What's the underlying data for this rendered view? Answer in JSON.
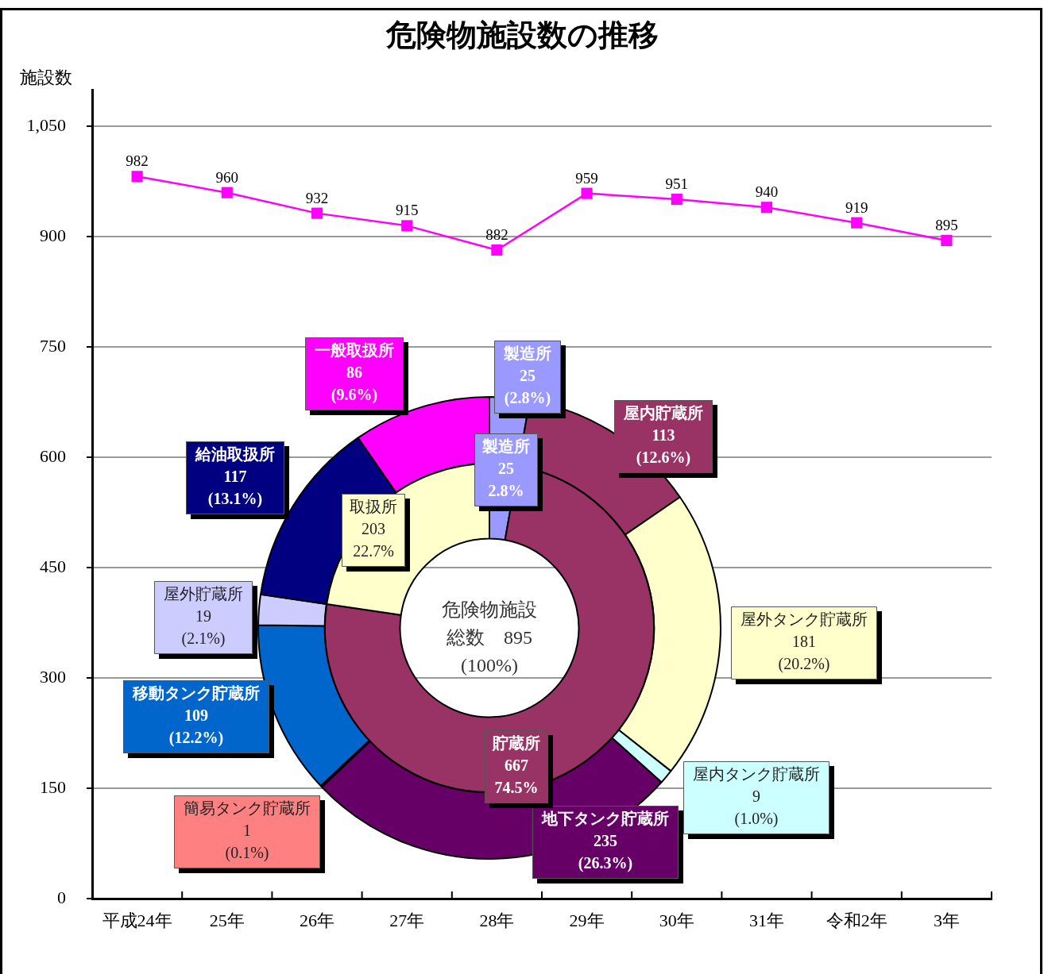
{
  "chart_data": [
    {
      "type": "line",
      "title": "危険物施設数の推移",
      "ylabel": "施設数",
      "categories": [
        "平成24年",
        "25年",
        "26年",
        "27年",
        "28年",
        "29年",
        "30年",
        "31年",
        "令和2年",
        "3年"
      ],
      "values": [
        982,
        960,
        932,
        915,
        882,
        959,
        951,
        940,
        919,
        895
      ],
      "color": "#ff00ff",
      "marker": "square",
      "line_style": "solid",
      "data_labels": true,
      "ylim": [
        0,
        1100
      ],
      "yticks": [
        0,
        150,
        300,
        450,
        600,
        750,
        900,
        {
          "value": 1050,
          "label": "1,050"
        }
      ],
      "grid": "y"
    },
    {
      "type": "donut",
      "categories": [
        "製造所",
        "屋内貯蔵所",
        "屋外タンク貯蔵所",
        "屋内タンク貯蔵所",
        "地下タンク貯蔵所",
        "簡易タンク貯蔵所",
        "移動タンク貯蔵所",
        "屋外貯蔵所",
        "給油取扱所",
        "一般取扱所"
      ],
      "values": [
        25,
        113,
        181,
        9,
        235,
        1,
        109,
        19,
        117,
        86
      ],
      "colors": [
        "#9999ff",
        "#993366",
        "#ffffcc",
        "#ccffff",
        "#660066",
        "#ff8080",
        "#0066cc",
        "#ccccff",
        "#000080",
        "#ff00ff"
      ],
      "value_labels": [
        "25\n(2.8%)",
        "113\n(12.6%)",
        "181\n(20.2%)",
        "9\n(1.0%)",
        "235\n(26.3%)",
        "1\n(0.1%)",
        "109\n(12.2%)",
        "19\n(2.1%)",
        "117\n(13.1%)",
        "86\n(9.6%)"
      ]
    },
    {
      "type": "donut",
      "categories": [
        "製造所",
        "貯蔵所",
        "取扱所"
      ],
      "values": [
        25,
        667,
        203
      ],
      "colors": [
        "#9999ff",
        "#993366",
        "#ffffcc"
      ],
      "value_labels": [
        "25\n2.8%",
        "667\n74.5%",
        "203\n22.7%"
      ],
      "annotations": [
        "危険物施設総数　895\n(100%)"
      ]
    }
  ]
}
